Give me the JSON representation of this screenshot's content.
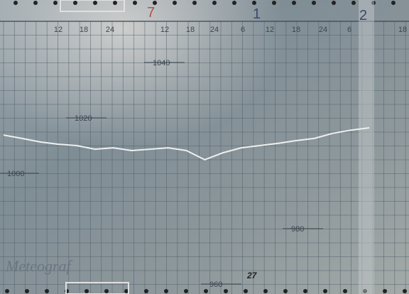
{
  "day_labels": [
    "7",
    "1",
    "2"
  ],
  "hour_labels": [
    "12",
    "18",
    "24",
    "12",
    "18",
    "24",
    "6",
    "12",
    "18",
    "24",
    "6",
    "18"
  ],
  "pressure_scale": [
    1040,
    1020,
    1000,
    980,
    960
  ],
  "brand": "Meteograf",
  "footer_number": "27",
  "trace": {
    "values": [
      1013.8,
      1012.6,
      1011.3,
      1010.5,
      1010.0,
      1008.7,
      1009.2,
      1008.2,
      1008.7,
      1009.2,
      1008.2,
      1004.9,
      1007.4,
      1009.2,
      1010.0,
      1010.8,
      1011.8,
      1012.6,
      1014.4,
      1015.6,
      1016.4
    ]
  }
}
